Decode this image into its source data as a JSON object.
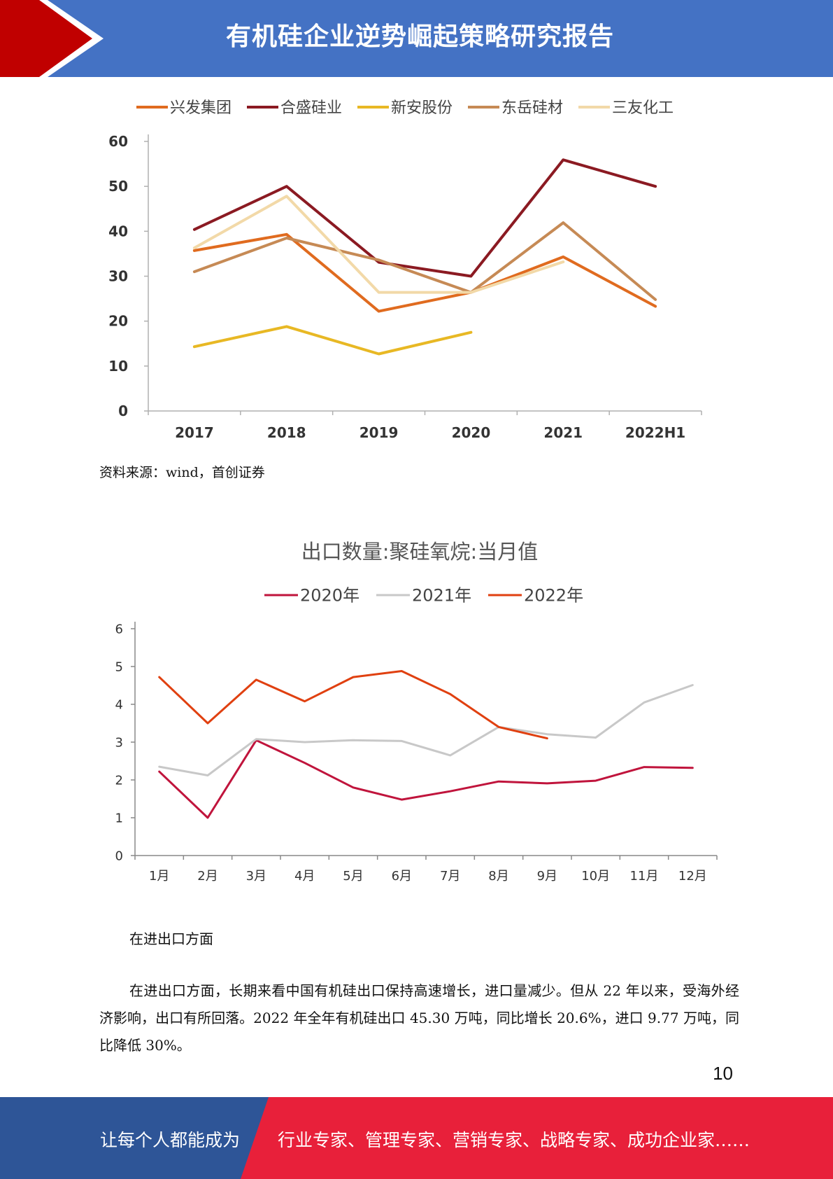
{
  "header": {
    "title": "有机硅企业逆势崛起策略研究报告"
  },
  "colors": {
    "header_blue": "#4472c4",
    "arrow_red": "#c00000",
    "footer_blue": "#2e5597",
    "footer_red": "#e8203a"
  },
  "chart_data": [
    {
      "type": "line",
      "title": "",
      "categories": [
        "2017",
        "2018",
        "2019",
        "2020",
        "2021",
        "2022H1"
      ],
      "ylim": [
        0,
        60
      ],
      "yticks": [
        "0",
        "10",
        "20",
        "30",
        "40",
        "50",
        "60"
      ],
      "legend_position": "top",
      "grid": false,
      "series": [
        {
          "name": "兴发集团",
          "color": "#e06b1f",
          "values": [
            35.7,
            39.3,
            22.2,
            26.4,
            34.3,
            23.3
          ]
        },
        {
          "name": "合盛硅业",
          "color": "#8b1a22",
          "values": [
            40.4,
            50.0,
            33.1,
            30.0,
            55.9,
            50.0
          ]
        },
        {
          "name": "新安股份",
          "color": "#e8b824",
          "values": [
            14.3,
            18.8,
            12.7,
            17.5,
            null,
            null
          ]
        },
        {
          "name": "东岳硅材",
          "color": "#c68a55",
          "values": [
            31.0,
            38.5,
            33.6,
            26.4,
            41.9,
            24.8
          ]
        },
        {
          "name": "三友化工",
          "color": "#f2d9a8",
          "values": [
            36.3,
            47.8,
            26.4,
            26.4,
            33.2,
            null
          ]
        }
      ]
    },
    {
      "type": "line",
      "title": "出口数量:聚硅氧烷:当月值",
      "categories": [
        "1月",
        "2月",
        "3月",
        "4月",
        "5月",
        "6月",
        "7月",
        "8月",
        "9月",
        "10月",
        "11月",
        "12月"
      ],
      "ylim": [
        0,
        6
      ],
      "yticks": [
        "0",
        "1",
        "2",
        "3",
        "4",
        "5",
        "6"
      ],
      "legend_position": "top",
      "grid": false,
      "series": [
        {
          "name": "2020年",
          "color": "#c0143c",
          "values": [
            2.22,
            1.0,
            3.05,
            2.45,
            1.8,
            1.48,
            1.7,
            1.96,
            1.91,
            1.98,
            2.34,
            2.32
          ]
        },
        {
          "name": "2021年",
          "color": "#c8c8c8",
          "values": [
            2.35,
            2.12,
            3.08,
            3.0,
            3.05,
            3.03,
            2.65,
            3.4,
            3.21,
            3.12,
            4.05,
            4.51
          ]
        },
        {
          "name": "2022年",
          "color": "#e04010",
          "values": [
            4.72,
            3.5,
            4.65,
            4.08,
            4.72,
            4.88,
            4.27,
            3.4,
            3.1,
            null,
            null,
            null
          ]
        }
      ]
    }
  ],
  "source": "资料来源：wind，首创证券",
  "body": {
    "heading": "在进出口方面",
    "paragraph": "在进出口方面，长期来看中国有机硅出口保持高速增长，进口量减少。但从 22 年以来，受海外经济影响，出口有所回落。2022 年全年有机硅出口 45.30 万吨，同比增长 20.6%，进口 9.77 万吨，同比降低 30%。"
  },
  "page_number": "10",
  "footer": {
    "left_text": "让每个人都能成为",
    "right_text": "行业专家、管理专家、营销专家、战略专家、成功企业家……"
  }
}
